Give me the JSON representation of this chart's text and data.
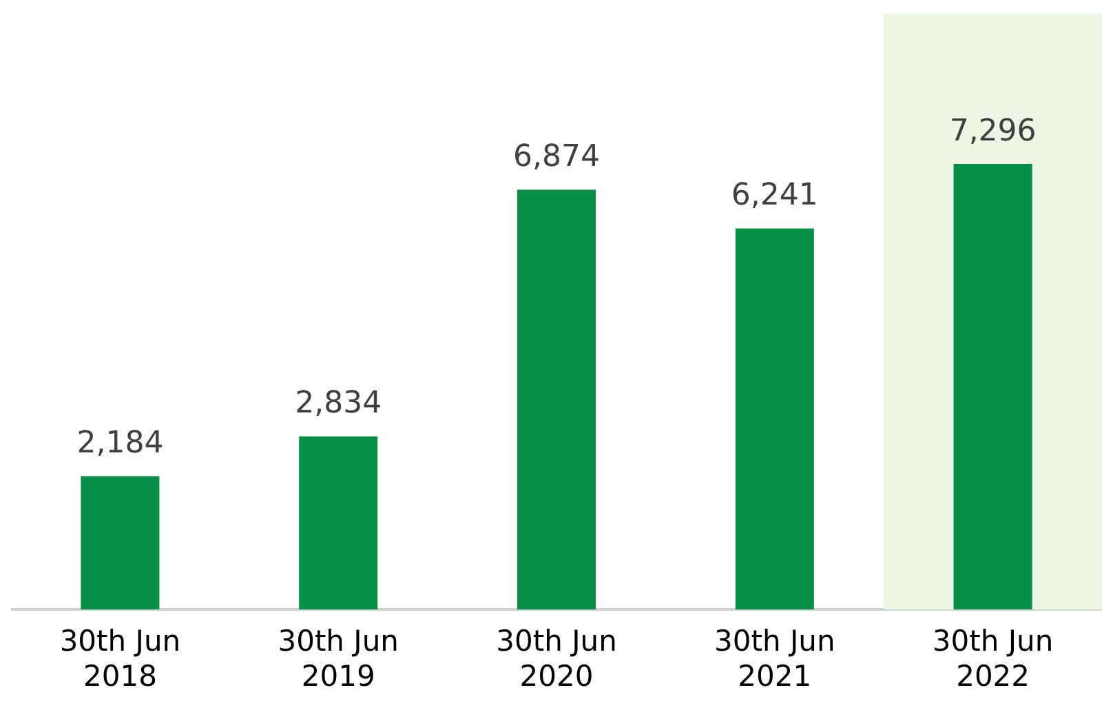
{
  "chart_data": {
    "type": "bar",
    "categories": [
      "30th Jun 2018",
      "30th Jun 2019",
      "30th Jun 2020",
      "30th Jun 2021",
      "30th Jun 2022"
    ],
    "values": [
      2184,
      2834,
      6874,
      6241,
      7296
    ],
    "color": "#078f46",
    "value_labels": [
      "2,184",
      "2,834",
      "6,874",
      "6,241",
      "7,296"
    ],
    "tick_labels": "x",
    "grid": false,
    "legend": false,
    "bands": [
      {
        "axis": "x",
        "from": "30th Jun 2022",
        "to": "30th Jun 2022",
        "color": "#edf5e4"
      }
    ]
  }
}
